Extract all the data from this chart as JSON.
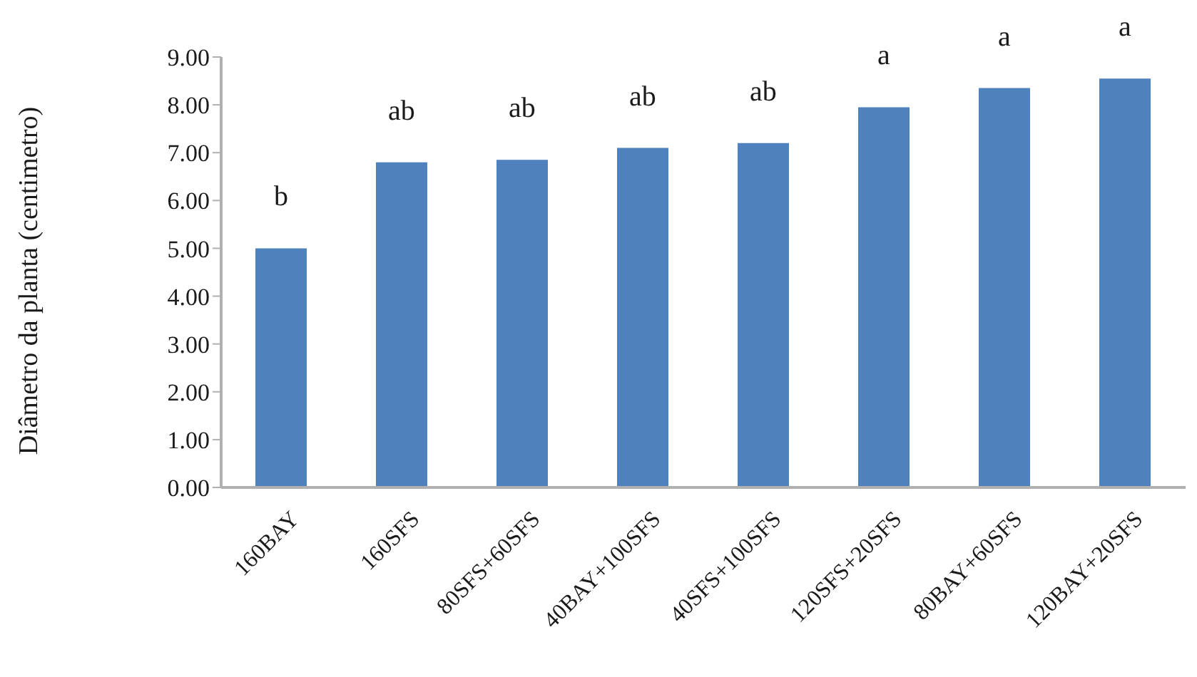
{
  "chart_data": {
    "type": "bar",
    "ylabel": "Diâmetro da planta (centimetro)",
    "categories": [
      "160BAY",
      "160SFS",
      "80SFS+60SFS",
      "40BAY+100SFS",
      "40SFS+100SFS",
      "120SFS+20SFS",
      "80BAY+60SFS",
      "120BAY+20SFS"
    ],
    "values": [
      5.0,
      6.8,
      6.85,
      7.1,
      7.2,
      7.95,
      8.35,
      8.55
    ],
    "value_labels": [
      "b",
      "ab",
      "ab",
      "ab",
      "ab",
      "a",
      "a",
      "a"
    ],
    "color": "#4f81bd",
    "ylim": [
      0,
      9
    ],
    "yticks": [
      {
        "value": 0,
        "label": "0.00"
      },
      {
        "value": 1,
        "label": "1.00"
      },
      {
        "value": 2,
        "label": "2.00"
      },
      {
        "value": 3,
        "label": "3.00"
      },
      {
        "value": 4,
        "label": "4.00"
      },
      {
        "value": 5,
        "label": "5.00"
      },
      {
        "value": 6,
        "label": "6.00"
      },
      {
        "value": 7,
        "label": "7.00"
      },
      {
        "value": 8,
        "label": "8.00"
      },
      {
        "value": 9,
        "label": "9.00"
      }
    ]
  }
}
